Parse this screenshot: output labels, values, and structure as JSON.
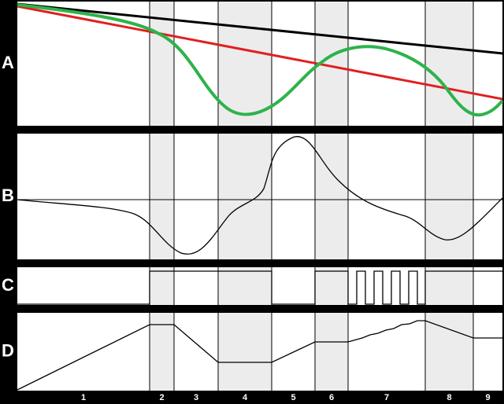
{
  "panels": [
    {
      "label": "A"
    },
    {
      "label": "B"
    },
    {
      "label": "C"
    },
    {
      "label": "D"
    }
  ],
  "sections": [
    "1",
    "2",
    "3",
    "4",
    "5",
    "6",
    "7",
    "8",
    "9"
  ]
}
